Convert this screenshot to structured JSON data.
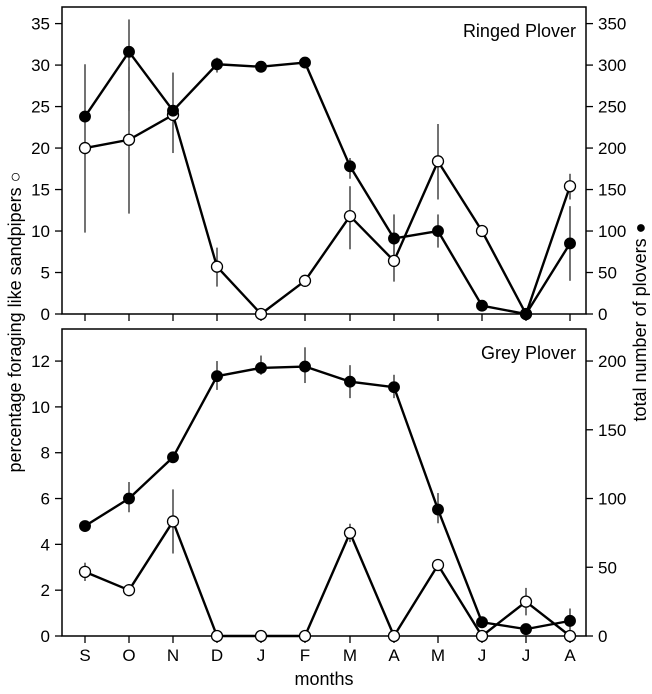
{
  "chart_data": [
    {
      "type": "line",
      "title": "Ringed Plover",
      "xlabel": "months",
      "ylabel_left": "percentage foraging like sandpipers ○",
      "ylabel_right": "total number of plovers ●",
      "categories": [
        "S",
        "O",
        "N",
        "D",
        "J",
        "F",
        "M",
        "A",
        "M",
        "J",
        "J",
        "A"
      ],
      "ylim_left": [
        0,
        37
      ],
      "ylim_right": [
        0,
        370
      ],
      "yticks_left": [
        0,
        5,
        10,
        15,
        20,
        25,
        30,
        35
      ],
      "yticks_right": [
        0,
        50,
        100,
        150,
        200,
        250,
        300,
        350
      ],
      "grid": false,
      "series": [
        {
          "marker": "open-circle",
          "axis": "left",
          "values": [
            20,
            21,
            24,
            5.7,
            0,
            4,
            11.8,
            6.4,
            18.4,
            10,
            0,
            15.4
          ],
          "error_low": [
            9.8,
            12.1,
            19.4,
            3.3,
            null,
            null,
            7.8,
            3.9,
            13.8,
            null,
            null,
            13.8
          ],
          "error_high": [
            30.1,
            29.8,
            29.1,
            8.0,
            null,
            null,
            15.4,
            9.1,
            22.9,
            null,
            null,
            16.9
          ]
        },
        {
          "marker": "filled-circle",
          "axis": "right",
          "values": [
            238,
            316,
            245,
            301,
            298,
            303,
            178,
            91,
            100,
            10,
            0,
            85
          ],
          "error_low": [
            null,
            245,
            null,
            291,
            null,
            null,
            163,
            65,
            80,
            null,
            null,
            40
          ],
          "error_high": [
            null,
            355,
            null,
            309,
            null,
            null,
            188,
            120,
            120,
            null,
            null,
            130
          ]
        }
      ]
    },
    {
      "type": "line",
      "title": "Grey Plover",
      "xlabel": "months",
      "categories": [
        "S",
        "O",
        "N",
        "D",
        "J",
        "F",
        "M",
        "A",
        "M",
        "J",
        "J",
        "A"
      ],
      "ylim_left": [
        0,
        13.4
      ],
      "ylim_right": [
        0,
        223.3
      ],
      "yticks_left": [
        0,
        2,
        4,
        6,
        8,
        10,
        12
      ],
      "yticks_right": [
        0,
        50,
        100,
        150,
        200
      ],
      "grid": false,
      "series": [
        {
          "marker": "open-circle",
          "axis": "left",
          "values": [
            2.8,
            2.0,
            5.0,
            0,
            0,
            0,
            4.5,
            0,
            3.1,
            0,
            1.5,
            0
          ],
          "error_low": [
            2.4,
            null,
            3.6,
            null,
            null,
            null,
            4.1,
            null,
            null,
            null,
            0.9,
            null
          ],
          "error_high": [
            3.2,
            null,
            6.4,
            null,
            null,
            null,
            4.9,
            null,
            null,
            null,
            2.1,
            null
          ]
        },
        {
          "marker": "filled-circle",
          "axis": "right",
          "values": [
            80,
            100,
            130,
            189,
            195,
            196,
            185,
            181,
            92,
            10,
            5,
            11
          ],
          "error_low": [
            null,
            90,
            null,
            179,
            190,
            184,
            173,
            173,
            82,
            null,
            null,
            0
          ],
          "error_high": [
            null,
            112,
            null,
            200,
            204,
            210,
            197,
            190,
            104,
            null,
            null,
            20
          ]
        }
      ]
    }
  ]
}
